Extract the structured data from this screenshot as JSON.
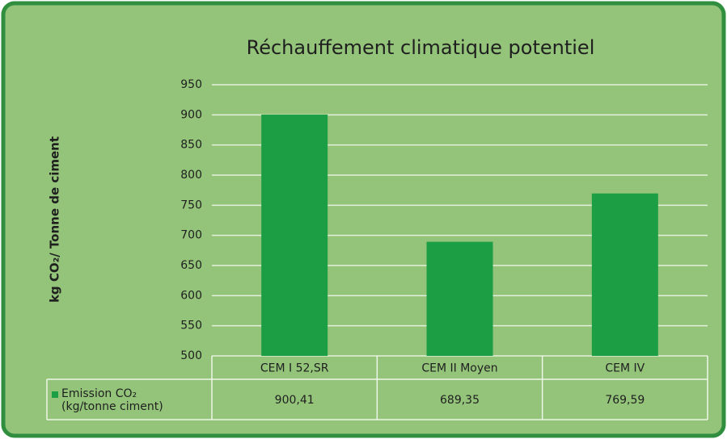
{
  "chart_data": {
    "type": "bar",
    "title": "Réchauffement climatique potentiel",
    "y_label": "kg CO₂/ Tonne de ciment",
    "categories": [
      "CEM I 52,SR",
      "CEM II Moyen",
      "CEM IV"
    ],
    "series": [
      {
        "name": "Emission CO₂\n(kg/tonne ciment)",
        "color": "#1c9e44",
        "values": [
          900.41,
          689.35,
          769.59
        ],
        "value_labels": [
          "900,41",
          "689,35",
          "769,59"
        ]
      }
    ],
    "ylim": [
      500,
      950
    ],
    "yticks": [
      500,
      550,
      600,
      650,
      700,
      750,
      800,
      850,
      900,
      950
    ],
    "grid": true
  }
}
